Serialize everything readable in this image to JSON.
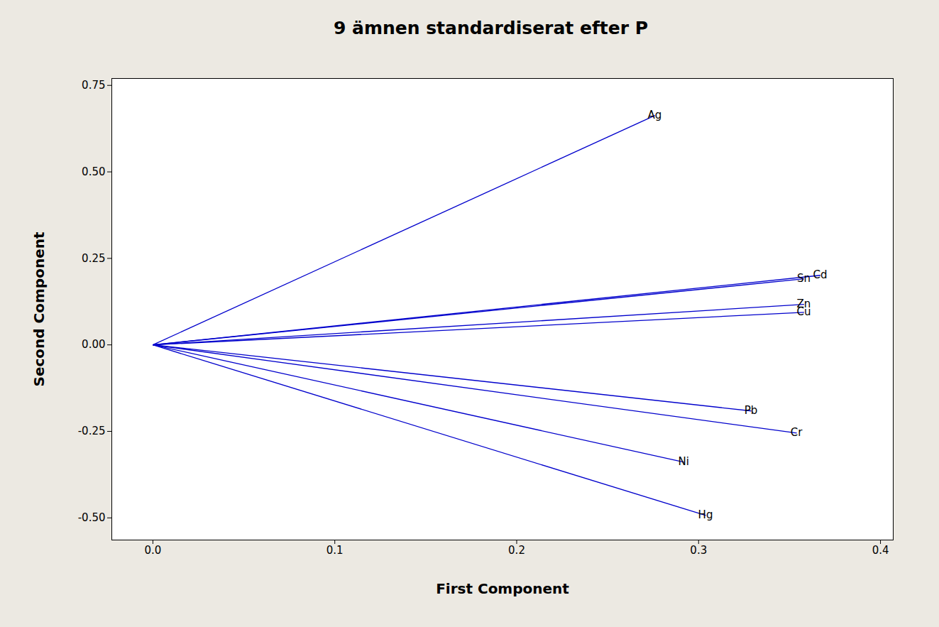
{
  "chart_data": {
    "type": "vector",
    "title": "9 ämnen standardiserat efter P",
    "x_label": "First Component",
    "y_label": "Second Component",
    "color": "#0000cc",
    "points": [
      {
        "name": "Ag",
        "x": 0.276,
        "y": 0.663
      },
      {
        "name": "Sn",
        "x": 0.358,
        "y": 0.191
      },
      {
        "name": "Cd",
        "x": 0.367,
        "y": 0.201
      },
      {
        "name": "Zn",
        "x": 0.358,
        "y": 0.117
      },
      {
        "name": "Cu",
        "x": 0.358,
        "y": 0.094
      },
      {
        "name": "Pb",
        "x": 0.329,
        "y": -0.191
      },
      {
        "name": "Cr",
        "x": 0.354,
        "y": -0.255
      },
      {
        "name": "Ni",
        "x": 0.292,
        "y": -0.339
      },
      {
        "name": "Hg",
        "x": 0.304,
        "y": -0.493
      }
    ],
    "xlim": [
      -0.0226,
      0.407
    ],
    "ylim": [
      -0.564,
      0.77
    ],
    "xticks": [
      {
        "value": 0,
        "label": "0.0"
      },
      0.1,
      0.2,
      0.3,
      0.4
    ],
    "yticks": [
      {
        "value": -0.5,
        "label": "-0.50"
      },
      -0.25,
      {
        "value": 0,
        "label": "0.00"
      },
      0.25,
      {
        "value": 0.5,
        "label": "0.50"
      },
      0.75
    ],
    "grid": false
  }
}
